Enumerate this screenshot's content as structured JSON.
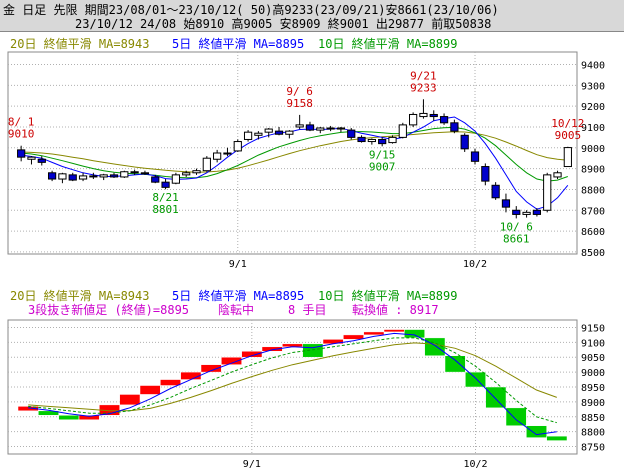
{
  "header": {
    "line1": "金 日足 先限 期間23/08/01～23/10/12( 50)高9233(23/09/21)安8661(23/10/06)",
    "line2": "23/10/12 24/08 始8910 高9005 安8909 終9001 出29877 前取50838"
  },
  "colors": {
    "up": "#ffffff",
    "down": "#0000cc",
    "ma5": "#0000ff",
    "ma10": "#009900",
    "ma20": "#888800",
    "red_box": "#ff0000",
    "green_box": "#00cc00",
    "label_red": "#cc0000",
    "label_green": "#009900",
    "magenta": "#cc00cc"
  },
  "legend_top": [
    {
      "text": "20日 終値平滑 MA=8943",
      "color": "#888800"
    },
    {
      "text": "5日 終値平滑 MA=8895",
      "color": "#0000ff"
    },
    {
      "text": "10日 終値平滑 MA=8899",
      "color": "#009900"
    }
  ],
  "legend_bottom": [
    {
      "text": "20日 終値平滑 MA=8943",
      "color": "#888800"
    },
    {
      "text": "5日 終値平滑 MA=8895",
      "color": "#0000ff"
    },
    {
      "text": "10日 終値平滑 MA=8899",
      "color": "#009900"
    }
  ],
  "threeline": {
    "label": "3段抜き新値足 (終値)=8895",
    "status": "陰転中",
    "count": "8 手目",
    "reversal": "転換値 : 8917"
  },
  "chart_data": [
    {
      "type": "candlestick",
      "x_tick_labels": [
        "9/1",
        "10/2"
      ],
      "y_ticks": [
        8500,
        8600,
        8700,
        8800,
        8900,
        9000,
        9100,
        9200,
        9300,
        9400
      ],
      "ylim": [
        8490,
        9460
      ],
      "annotations": [
        {
          "date_lines": [
            "8/ 1",
            "9010"
          ],
          "color": "#cc0000"
        },
        {
          "date_lines": [
            "9/ 6",
            "9158"
          ],
          "color": "#cc0000"
        },
        {
          "date_lines": [
            "9/21",
            "9233"
          ],
          "color": "#cc0000"
        },
        {
          "date_lines": [
            "10/12",
            "9005"
          ],
          "color": "#cc0000"
        },
        {
          "date_lines": [
            "8/21",
            "8801"
          ],
          "color": "#009900"
        },
        {
          "date_lines": [
            "9/15",
            "9007"
          ],
          "color": "#009900"
        },
        {
          "date_lines": [
            "10/ 6",
            "8661"
          ],
          "color": "#009900"
        }
      ],
      "candles": [
        {
          "o": 8990,
          "h": 9010,
          "l": 8935,
          "c": 8955
        },
        {
          "o": 8945,
          "h": 8960,
          "l": 8920,
          "c": 8955
        },
        {
          "o": 8945,
          "h": 8960,
          "l": 8915,
          "c": 8930
        },
        {
          "o": 8880,
          "h": 8890,
          "l": 8840,
          "c": 8850
        },
        {
          "o": 8850,
          "h": 8880,
          "l": 8830,
          "c": 8875
        },
        {
          "o": 8870,
          "h": 8880,
          "l": 8840,
          "c": 8845
        },
        {
          "o": 8850,
          "h": 8880,
          "l": 8840,
          "c": 8865
        },
        {
          "o": 8865,
          "h": 8880,
          "l": 8850,
          "c": 8860
        },
        {
          "o": 8860,
          "h": 8875,
          "l": 8845,
          "c": 8870
        },
        {
          "o": 8870,
          "h": 8880,
          "l": 8855,
          "c": 8860
        },
        {
          "o": 8860,
          "h": 8890,
          "l": 8855,
          "c": 8885
        },
        {
          "o": 8885,
          "h": 8895,
          "l": 8870,
          "c": 8880
        },
        {
          "o": 8880,
          "h": 8890,
          "l": 8870,
          "c": 8875
        },
        {
          "o": 8860,
          "h": 8870,
          "l": 8830,
          "c": 8835
        },
        {
          "o": 8835,
          "h": 8850,
          "l": 8801,
          "c": 8810
        },
        {
          "o": 8830,
          "h": 8880,
          "l": 8825,
          "c": 8870
        },
        {
          "o": 8870,
          "h": 8890,
          "l": 8860,
          "c": 8880
        },
        {
          "o": 8880,
          "h": 8900,
          "l": 8870,
          "c": 8890
        },
        {
          "o": 8890,
          "h": 8960,
          "l": 8885,
          "c": 8950
        },
        {
          "o": 8945,
          "h": 8990,
          "l": 8930,
          "c": 8975
        },
        {
          "o": 8975,
          "h": 9000,
          "l": 8960,
          "c": 8970
        },
        {
          "o": 8985,
          "h": 9040,
          "l": 8980,
          "c": 9030
        },
        {
          "o": 9040,
          "h": 9085,
          "l": 9030,
          "c": 9075
        },
        {
          "o": 9060,
          "h": 9080,
          "l": 9040,
          "c": 9070
        },
        {
          "o": 9075,
          "h": 9095,
          "l": 9050,
          "c": 9090
        },
        {
          "o": 9080,
          "h": 9100,
          "l": 9060,
          "c": 9065
        },
        {
          "o": 9065,
          "h": 9085,
          "l": 9045,
          "c": 9080
        },
        {
          "o": 9100,
          "h": 9158,
          "l": 9090,
          "c": 9110
        },
        {
          "o": 9110,
          "h": 9125,
          "l": 9080,
          "c": 9085
        },
        {
          "o": 9085,
          "h": 9100,
          "l": 9070,
          "c": 9095
        },
        {
          "o": 9095,
          "h": 9105,
          "l": 9080,
          "c": 9090
        },
        {
          "o": 9090,
          "h": 9100,
          "l": 9075,
          "c": 9095
        },
        {
          "o": 9085,
          "h": 9095,
          "l": 9040,
          "c": 9050
        },
        {
          "o": 9050,
          "h": 9060,
          "l": 9025,
          "c": 9030
        },
        {
          "o": 9030,
          "h": 9045,
          "l": 9015,
          "c": 9040
        },
        {
          "o": 9040,
          "h": 9050,
          "l": 9007,
          "c": 9020
        },
        {
          "o": 9025,
          "h": 9060,
          "l": 9020,
          "c": 9050
        },
        {
          "o": 9050,
          "h": 9120,
          "l": 9045,
          "c": 9110
        },
        {
          "o": 9110,
          "h": 9170,
          "l": 9100,
          "c": 9160
        },
        {
          "o": 9150,
          "h": 9233,
          "l": 9140,
          "c": 9165
        },
        {
          "o": 9160,
          "h": 9180,
          "l": 9130,
          "c": 9150
        },
        {
          "o": 9150,
          "h": 9165,
          "l": 9110,
          "c": 9120
        },
        {
          "o": 9120,
          "h": 9135,
          "l": 9070,
          "c": 9080
        },
        {
          "o": 9060,
          "h": 9070,
          "l": 8980,
          "c": 8995
        },
        {
          "o": 8980,
          "h": 8995,
          "l": 8920,
          "c": 8935
        },
        {
          "o": 8910,
          "h": 8925,
          "l": 8820,
          "c": 8840
        },
        {
          "o": 8820,
          "h": 8835,
          "l": 8750,
          "c": 8760
        },
        {
          "o": 8750,
          "h": 8780,
          "l": 8690,
          "c": 8715
        },
        {
          "o": 8700,
          "h": 8720,
          "l": 8661,
          "c": 8680
        },
        {
          "o": 8680,
          "h": 8700,
          "l": 8665,
          "c": 8690
        },
        {
          "o": 8700,
          "h": 8710,
          "l": 8670,
          "c": 8680
        },
        {
          "o": 8700,
          "h": 8880,
          "l": 8690,
          "c": 8870
        },
        {
          "o": 8860,
          "h": 8890,
          "l": 8850,
          "c": 8880
        },
        {
          "o": 8910,
          "h": 9005,
          "l": 8909,
          "c": 9001
        }
      ],
      "ma5": [
        8965,
        8958,
        8950,
        8930,
        8910,
        8895,
        8880,
        8870,
        8862,
        8862,
        8866,
        8870,
        8874,
        8866,
        8852,
        8848,
        8850,
        8855,
        8880,
        8915,
        8955,
        8990,
        9020,
        9045,
        9060,
        9072,
        9076,
        9088,
        9090,
        9088,
        9090,
        9094,
        9082,
        9070,
        9060,
        9050,
        9040,
        9050,
        9075,
        9100,
        9130,
        9140,
        9148,
        9120,
        9080,
        9020,
        8950,
        8870,
        8790,
        8740,
        8705,
        8720,
        8760,
        8820
      ],
      "ma10": [
        8975,
        8970,
        8962,
        8950,
        8938,
        8925,
        8912,
        8900,
        8890,
        8883,
        8878,
        8875,
        8872,
        8868,
        8862,
        8858,
        8856,
        8856,
        8862,
        8876,
        8895,
        8915,
        8940,
        8965,
        8985,
        9005,
        9020,
        9035,
        9048,
        9058,
        9066,
        9074,
        9078,
        9078,
        9076,
        9072,
        9068,
        9068,
        9075,
        9083,
        9092,
        9096,
        9098,
        9090,
        9072,
        9046,
        9010,
        8965,
        8920,
        8880,
        8850,
        8840,
        8845,
        8862
      ],
      "ma20": [
        8980,
        8978,
        8975,
        8970,
        8963,
        8955,
        8947,
        8938,
        8930,
        8922,
        8915,
        8908,
        8902,
        8897,
        8892,
        8888,
        8885,
        8883,
        8884,
        8887,
        8893,
        8902,
        8914,
        8928,
        8942,
        8957,
        8972,
        8986,
        8998,
        9010,
        9020,
        9030,
        9038,
        9044,
        9049,
        9053,
        9056,
        9060,
        9064,
        9068,
        9072,
        9075,
        9077,
        9076,
        9070,
        9060,
        9046,
        9028,
        9008,
        8987,
        8967,
        8953,
        8945,
        8940
      ]
    },
    {
      "type": "three-line-break",
      "x_tick_labels": [
        "9/1",
        "10/2"
      ],
      "y_ticks": [
        8750,
        8800,
        8850,
        8900,
        8950,
        9000,
        9050,
        9100,
        9150
      ],
      "ylim": [
        8725,
        9175
      ],
      "bricks": [
        {
          "dir": "up",
          "from": 8870,
          "to": 8885
        },
        {
          "dir": "down",
          "from": 8855,
          "to": 8870
        },
        {
          "dir": "down",
          "from": 8840,
          "to": 8855
        },
        {
          "dir": "up",
          "from": 8840,
          "to": 8855
        },
        {
          "dir": "up",
          "from": 8855,
          "to": 8890
        },
        {
          "dir": "up",
          "from": 8890,
          "to": 8925
        },
        {
          "dir": "up",
          "from": 8925,
          "to": 8955
        },
        {
          "dir": "up",
          "from": 8955,
          "to": 8975
        },
        {
          "dir": "up",
          "from": 8975,
          "to": 9000
        },
        {
          "dir": "up",
          "from": 9000,
          "to": 9025
        },
        {
          "dir": "up",
          "from": 9025,
          "to": 9050
        },
        {
          "dir": "up",
          "from": 9050,
          "to": 9070
        },
        {
          "dir": "up",
          "from": 9070,
          "to": 9085
        },
        {
          "dir": "up",
          "from": 9085,
          "to": 9095
        },
        {
          "dir": "down",
          "from": 9050,
          "to": 9095
        },
        {
          "dir": "up",
          "from": 9095,
          "to": 9110
        },
        {
          "dir": "up",
          "from": 9110,
          "to": 9125
        },
        {
          "dir": "up",
          "from": 9125,
          "to": 9135
        },
        {
          "dir": "up",
          "from": 9135,
          "to": 9143
        },
        {
          "dir": "down",
          "from": 9115,
          "to": 9143
        },
        {
          "dir": "down",
          "from": 9055,
          "to": 9115
        },
        {
          "dir": "down",
          "from": 9000,
          "to": 9055
        },
        {
          "dir": "down",
          "from": 8950,
          "to": 9000
        },
        {
          "dir": "down",
          "from": 8880,
          "to": 8950
        },
        {
          "dir": "down",
          "from": 8820,
          "to": 8880
        },
        {
          "dir": "down",
          "from": 8780,
          "to": 8820
        },
        {
          "dir": "down",
          "from": 8770,
          "to": 8785
        }
      ],
      "ma5": [
        8880,
        8872,
        8860,
        8852,
        8860,
        8880,
        8910,
        8945,
        8975,
        9005,
        9030,
        9055,
        9075,
        9085,
        9082,
        9095,
        9105,
        9120,
        9130,
        9125,
        9090,
        9040,
        8980,
        8910,
        8840,
        8790,
        8800
      ],
      "ma10": [
        8885,
        8878,
        8870,
        8862,
        8862,
        8870,
        8890,
        8915,
        8945,
        8972,
        9000,
        9025,
        9048,
        9066,
        9075,
        9085,
        9095,
        9105,
        9115,
        9115,
        9098,
        9065,
        9020,
        8965,
        8905,
        8850,
        8830
      ],
      "ma20": [
        8890,
        8885,
        8880,
        8875,
        8870,
        8870,
        8878,
        8895,
        8915,
        8938,
        8962,
        8985,
        9006,
        9025,
        9040,
        9055,
        9068,
        9080,
        9092,
        9098,
        9094,
        9080,
        9055,
        9020,
        8980,
        8940,
        8915
      ]
    }
  ]
}
